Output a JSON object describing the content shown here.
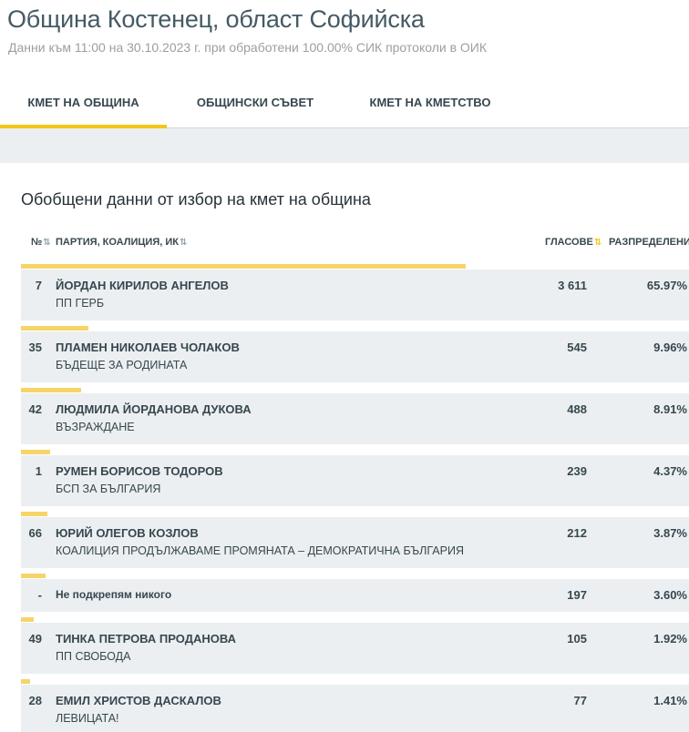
{
  "header": {
    "title": "Община Костенец, област Софийска",
    "subtitle": "Данни към 11:00 на 30.10.2023 г. при обработени 100.00% СИК протоколи в ОИК"
  },
  "tabs": [
    {
      "label": "КМЕТ НА ОБЩИНА",
      "active": true
    },
    {
      "label": "ОБЩИНСКИ СЪВЕТ",
      "active": false
    },
    {
      "label": "КМЕТ НА КМЕТСТВО",
      "active": false
    }
  ],
  "section": {
    "title": "Обобщени данни от избор на кмет на община"
  },
  "columns": {
    "num": "№",
    "party": "ПАРТИЯ, КОАЛИЦИЯ, ИК",
    "votes": "ГЛАСОВЕ",
    "distribution": "РАЗПРЕДЕЛЕНИЕ"
  },
  "accent_color": "#f5c518",
  "bar_color": "#f7d467",
  "rows": [
    {
      "num": "7",
      "name": "ЙОРДАН КИРИЛОВ АНГЕЛОВ",
      "party": "ПП ГЕРБ",
      "votes": "3 611",
      "pct": "65.97%",
      "share": 0.6597
    },
    {
      "num": "35",
      "name": "ПЛАМЕН НИКОЛАЕВ ЧОЛАКОВ",
      "party": "БЪДЕЩЕ ЗА РОДИНАТА",
      "votes": "545",
      "pct": "9.96%",
      "share": 0.0996
    },
    {
      "num": "42",
      "name": "ЛЮДМИЛА ЙОРДАНОВА ДУКОВА",
      "party": "ВЪЗРАЖДАНЕ",
      "votes": "488",
      "pct": "8.91%",
      "share": 0.0891
    },
    {
      "num": "1",
      "name": "РУМЕН БОРИСОВ ТОДОРОВ",
      "party": "БСП ЗА БЪЛГАРИЯ",
      "votes": "239",
      "pct": "4.37%",
      "share": 0.0437
    },
    {
      "num": "66",
      "name": "ЮРИЙ ОЛЕГОВ КОЗЛОВ",
      "party": "КОАЛИЦИЯ ПРОДЪЛЖАВАМЕ ПРОМЯНАТА – ДЕМОКРАТИЧНА БЪЛГАРИЯ",
      "votes": "212",
      "pct": "3.87%",
      "share": 0.0387
    },
    {
      "num": "-",
      "name": "Не подкрепям никого",
      "party": "",
      "votes": "197",
      "pct": "3.60%",
      "share": 0.036
    },
    {
      "num": "49",
      "name": "ТИНКА ПЕТРОВА ПРОДАНОВА",
      "party": "ПП СВОБОДА",
      "votes": "105",
      "pct": "1.92%",
      "share": 0.0192
    },
    {
      "num": "28",
      "name": "ЕМИЛ ХРИСТОВ ДАСКАЛОВ",
      "party": "ЛЕВИЦАТА!",
      "votes": "77",
      "pct": "1.41%",
      "share": 0.0141
    }
  ]
}
